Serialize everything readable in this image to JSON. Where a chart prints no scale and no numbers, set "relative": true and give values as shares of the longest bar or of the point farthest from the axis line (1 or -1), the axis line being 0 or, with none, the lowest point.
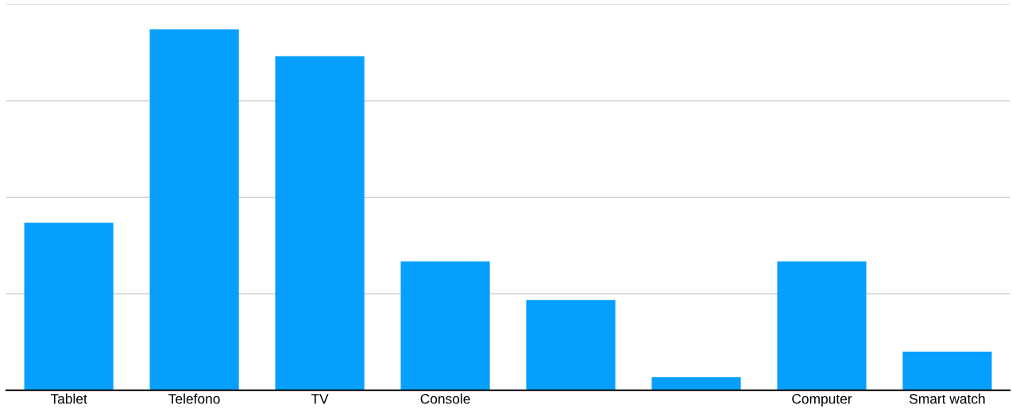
{
  "chart_data": {
    "type": "bar",
    "relative": true,
    "categories": [
      "Tablet",
      "Telefono",
      "TV",
      "Console",
      null,
      null,
      "Computer",
      "Smart watch"
    ],
    "values": [
      0.464,
      1,
      0.926,
      0.357,
      0.25,
      0.036,
      0.357,
      0.107
    ],
    "color": "#069ffe",
    "grid": "y"
  }
}
